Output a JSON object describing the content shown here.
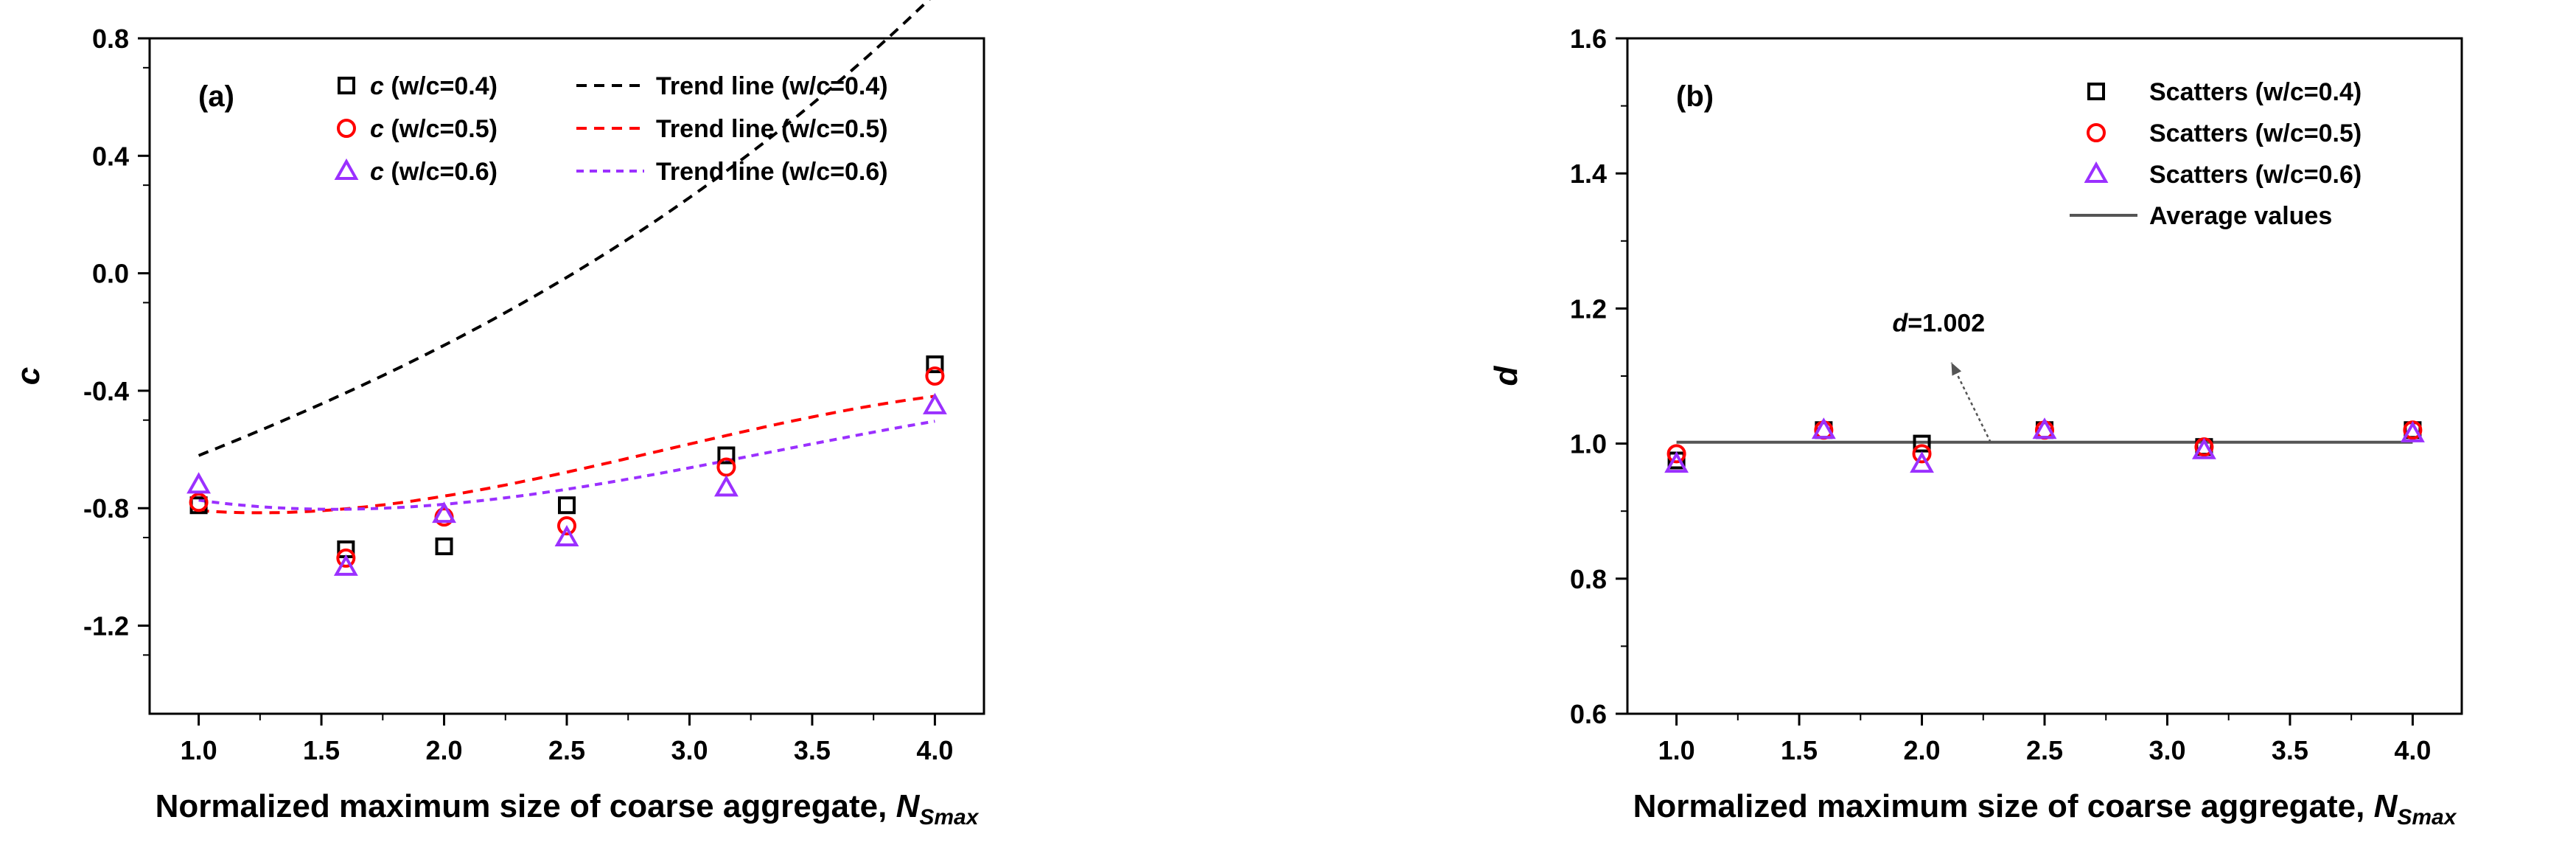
{
  "colors": {
    "wc04": "#000000",
    "wc05": "#ff0000",
    "wc06": "#9b30ff",
    "average": "#555555",
    "annotation": "#555555"
  },
  "chart_data": [
    {
      "type": "scatter",
      "panel_label": "(a)",
      "xlabel": "Normalized maximum size of coarse aggregate, ",
      "xlabel_var": "N",
      "xlabel_sub": "Smax",
      "ylabel": "c",
      "xlim": [
        0.8,
        4.2
      ],
      "ylim": [
        -1.5,
        0.8
      ],
      "xticks": [
        1.0,
        1.5,
        2.0,
        2.5,
        3.0,
        3.5,
        4.0
      ],
      "xtick_labels": [
        "1.0",
        "1.5",
        "2.0",
        "2.5",
        "3.0",
        "3.5",
        "4.0"
      ],
      "yticks": [
        -1.2,
        -0.8,
        -0.4,
        0.0,
        0.4,
        0.8
      ],
      "ytick_labels": [
        "-1.2",
        "-0.8",
        "-0.4",
        "0.0",
        "0.4",
        "0.8"
      ],
      "legend_position": "top-right",
      "series": [
        {
          "name": "c (w/c=0.4)",
          "legend_var": "c",
          "legend_rest": " (w/c=0.4)",
          "marker": "square",
          "color_key": "wc04",
          "x": [
            1.0,
            1.6,
            2.0,
            2.5,
            3.15,
            4.0
          ],
          "y": [
            -0.79,
            -0.94,
            -0.93,
            -0.79,
            -0.62,
            -0.31
          ]
        },
        {
          "name": "c (w/c=0.5)",
          "legend_var": "c",
          "legend_rest": " (w/c=0.5)",
          "marker": "circle",
          "color_key": "wc05",
          "x": [
            1.0,
            1.6,
            2.0,
            2.5,
            3.15,
            4.0
          ],
          "y": [
            -0.78,
            -0.97,
            -0.83,
            -0.86,
            -0.66,
            -0.35
          ]
        },
        {
          "name": "c (w/c=0.6)",
          "legend_var": "c",
          "legend_rest": " (w/c=0.6)",
          "marker": "triangle",
          "color_key": "wc06",
          "x": [
            1.0,
            1.6,
            2.0,
            2.5,
            3.15,
            4.0
          ],
          "y": [
            -0.72,
            -1.0,
            -0.82,
            -0.9,
            -0.73,
            -0.45
          ]
        }
      ],
      "trend_lines": [
        {
          "name": "Trend line (w/c=0.4)",
          "color_key": "wc04",
          "dash": "14,10",
          "coef": [
            -0.9322,
            0.3009,
            0.0001,
            0.0106
          ]
        },
        {
          "name": "Trend line (w/c=0.5)",
          "color_key": "wc05",
          "dash": "14,10",
          "coef": [
            -0.5863,
            -0.4049,
            0.2069,
            -0.0238
          ]
        },
        {
          "name": "Trend line (w/c=0.6)",
          "color_key": "wc06",
          "dash": "10,8",
          "coef": [
            -0.5167,
            -0.4116,
            0.1729,
            -0.0173
          ]
        }
      ]
    },
    {
      "type": "scatter",
      "panel_label": "(b)",
      "xlabel": "Normalized maximum size of coarse aggregate, ",
      "xlabel_var": "N",
      "xlabel_sub": "Smax",
      "ylabel": "d",
      "xlim": [
        0.8,
        4.2
      ],
      "ylim": [
        0.6,
        1.6
      ],
      "xticks": [
        1.0,
        1.5,
        2.0,
        2.5,
        3.0,
        3.5,
        4.0
      ],
      "xtick_labels": [
        "1.0",
        "1.5",
        "2.0",
        "2.5",
        "3.0",
        "3.5",
        "4.0"
      ],
      "yticks": [
        0.6,
        0.8,
        1.0,
        1.2,
        1.4,
        1.6
      ],
      "ytick_labels": [
        "0.6",
        "0.8",
        "1.0",
        "1.2",
        "1.4",
        "1.6"
      ],
      "legend_position": "top-right",
      "series": [
        {
          "name": "Scatters (w/c=0.4)",
          "marker": "square",
          "color_key": "wc04",
          "x": [
            1.0,
            1.6,
            2.0,
            2.5,
            3.15,
            4.0
          ],
          "y": [
            0.975,
            1.02,
            1.0,
            1.02,
            0.995,
            1.02
          ]
        },
        {
          "name": "Scatters (w/c=0.5)",
          "marker": "circle",
          "color_key": "wc05",
          "x": [
            1.0,
            1.6,
            2.0,
            2.5,
            3.15,
            4.0
          ],
          "y": [
            0.985,
            1.02,
            0.985,
            1.02,
            0.995,
            1.02
          ]
        },
        {
          "name": "Scatters (w/c=0.6)",
          "marker": "triangle",
          "color_key": "wc06",
          "x": [
            1.0,
            1.6,
            2.0,
            2.5,
            3.15,
            4.0
          ],
          "y": [
            0.97,
            1.02,
            0.97,
            1.02,
            0.99,
            1.015
          ]
        }
      ],
      "average_line": {
        "name": "Average values",
        "value": 1.002,
        "x_range": [
          1.0,
          4.0
        ],
        "color_key": "average"
      },
      "annotation": {
        "var": "d",
        "text": "=1.002",
        "from": [
          2.28,
          1.002
        ],
        "to": [
          2.12,
          1.12
        ]
      }
    }
  ]
}
